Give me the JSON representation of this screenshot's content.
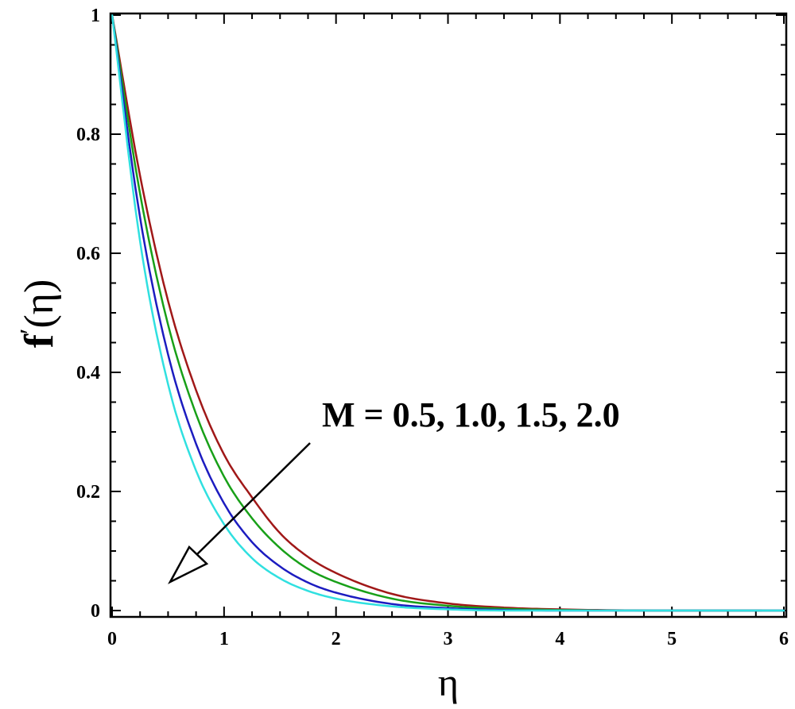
{
  "chart_data": {
    "type": "line",
    "title": "",
    "xlabel": "η",
    "ylabel_main": "f",
    "ylabel_prime": "′",
    "ylabel_arg": "(η)",
    "xlim": [
      0,
      6
    ],
    "ylim": [
      0,
      1
    ],
    "xticks": [
      "0",
      "1",
      "2",
      "3",
      "4",
      "5",
      "6"
    ],
    "yticks": [
      "0",
      "0.2",
      "0.4",
      "0.6",
      "0.8",
      "1"
    ],
    "grid": false,
    "annotation": "M = 0.5, 1.0, 1.5, 2.0",
    "series": [
      {
        "color": "#a01818",
        "x": [
          0,
          0.25,
          0.5,
          0.75,
          1.0,
          1.25,
          1.5,
          1.75,
          2.0,
          2.5,
          3.0,
          3.5,
          4.0,
          5.0,
          5.8
        ],
        "values": [
          1.0,
          0.73,
          0.52,
          0.37,
          0.262,
          0.19,
          0.13,
          0.09,
          0.063,
          0.028,
          0.012,
          0.005,
          0.002,
          0.0,
          0.0
        ]
      },
      {
        "color": "#18a018",
        "x": [
          0,
          0.25,
          0.5,
          0.75,
          1.0,
          1.25,
          1.5,
          1.75,
          2.0,
          2.5,
          3.0,
          3.5,
          4.0,
          5.0,
          6.0
        ],
        "values": [
          1.0,
          0.7,
          0.48,
          0.33,
          0.225,
          0.155,
          0.105,
          0.07,
          0.048,
          0.02,
          0.008,
          0.003,
          0.001,
          0.0,
          0.0
        ]
      },
      {
        "color": "#1c1cc0",
        "x": [
          0,
          0.25,
          0.5,
          0.75,
          1.0,
          1.25,
          1.5,
          1.75,
          2.0,
          2.5,
          3.0,
          3.5,
          4.0,
          5.0,
          6.0
        ],
        "values": [
          1.0,
          0.66,
          0.43,
          0.28,
          0.18,
          0.115,
          0.074,
          0.047,
          0.03,
          0.011,
          0.004,
          0.001,
          0.0,
          0.0,
          0.0
        ]
      },
      {
        "color": "#30e0e0",
        "x": [
          0,
          0.25,
          0.5,
          0.75,
          1.0,
          1.25,
          1.5,
          1.75,
          2.0,
          2.5,
          3.0,
          3.5,
          4.0,
          5.0,
          6.0
        ],
        "values": [
          1.0,
          0.62,
          0.38,
          0.235,
          0.145,
          0.088,
          0.054,
          0.033,
          0.02,
          0.007,
          0.002,
          0.0,
          0.0,
          0.0,
          0.0
        ]
      }
    ]
  }
}
